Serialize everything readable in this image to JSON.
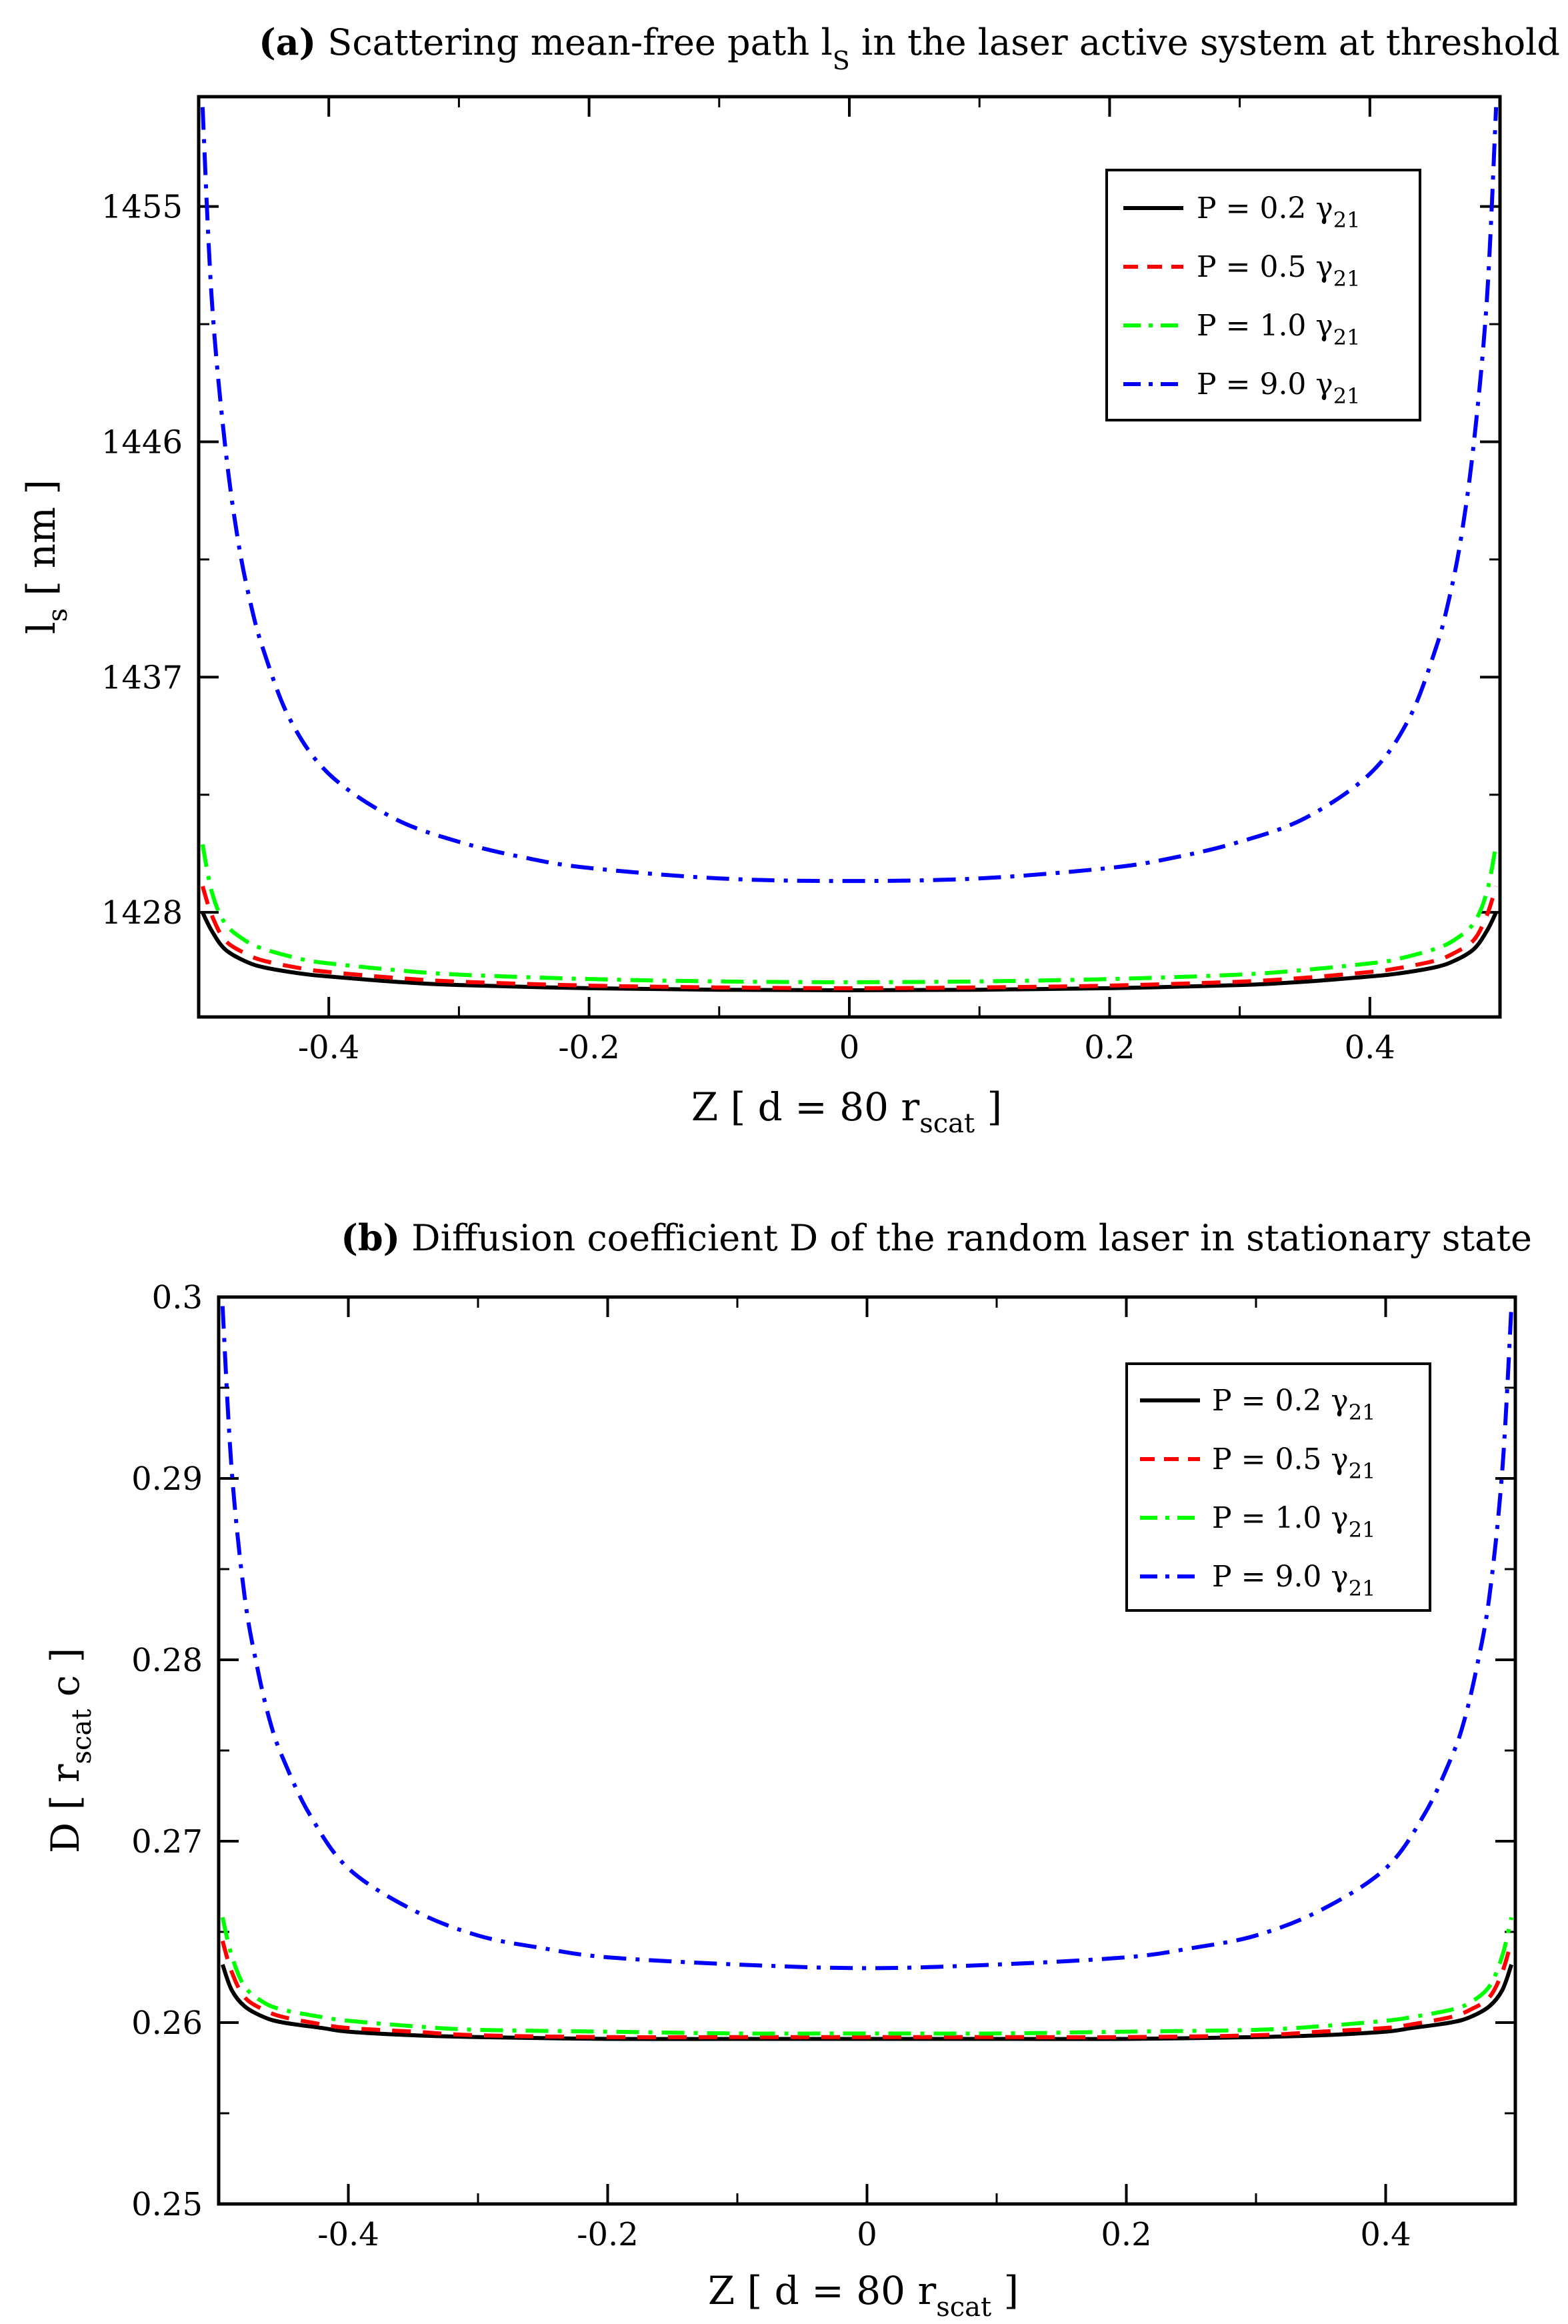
{
  "chart_data": [
    {
      "type": "line",
      "panel_tag": "(a)",
      "title": "Scattering mean-free path l",
      "title_sub": "S",
      "title_rest": " in the laser active system at threshold",
      "xlabel": "Z [ d = 80 r",
      "xlabel_sub": "scat",
      "xlabel_end": " ]",
      "ylabel": "l",
      "ylabel_sub": "s",
      "ylabel_end": " [ nm ]",
      "xlim": [
        -0.5,
        0.5
      ],
      "ylim": [
        1424.0,
        1459.2
      ],
      "x_ticks": [
        -0.4,
        -0.2,
        0,
        0.2,
        0.4
      ],
      "x_tick_labels": [
        "-0.4",
        "-0.2",
        "0",
        "0.2",
        "0.4"
      ],
      "y_ticks": [
        1428,
        1437,
        1446,
        1455
      ],
      "y_tick_labels": [
        "1428",
        "1437",
        "1446",
        "1455"
      ],
      "legend_position": "top-right",
      "series": [
        {
          "name": "P =  0.2 γ21",
          "label": "P =  0.2 γ",
          "label_sub": "21",
          "color": "#000000",
          "dash": "solid",
          "x": [
            -0.497,
            -0.49,
            -0.48,
            -0.465,
            -0.45,
            -0.42,
            -0.4,
            -0.35,
            -0.3,
            -0.2,
            -0.1,
            0,
            0.1,
            0.2,
            0.3,
            0.35,
            0.4,
            0.42,
            0.45,
            0.465,
            0.48,
            0.49,
            0.497
          ],
          "values": [
            1428.0,
            1427.3,
            1426.6,
            1426.15,
            1425.9,
            1425.65,
            1425.55,
            1425.35,
            1425.22,
            1425.1,
            1425.04,
            1425.02,
            1425.04,
            1425.1,
            1425.22,
            1425.35,
            1425.55,
            1425.65,
            1425.9,
            1426.15,
            1426.6,
            1427.3,
            1428.0
          ]
        },
        {
          "name": "P =  0.5 γ21",
          "label": "P =  0.5 γ",
          "label_sub": "21",
          "color": "#ff0000",
          "dash": "dashed",
          "x": [
            -0.497,
            -0.49,
            -0.48,
            -0.465,
            -0.45,
            -0.42,
            -0.4,
            -0.35,
            -0.3,
            -0.2,
            -0.1,
            0,
            0.1,
            0.2,
            0.3,
            0.35,
            0.4,
            0.42,
            0.45,
            0.465,
            0.48,
            0.49,
            0.497
          ],
          "values": [
            1429.0,
            1427.9,
            1426.95,
            1426.45,
            1426.15,
            1425.85,
            1425.72,
            1425.5,
            1425.35,
            1425.2,
            1425.13,
            1425.1,
            1425.13,
            1425.2,
            1425.35,
            1425.5,
            1425.72,
            1425.85,
            1426.15,
            1426.45,
            1426.95,
            1427.9,
            1429.0
          ]
        },
        {
          "name": "P =  1.0 γ21",
          "label": "P =  1.0 γ",
          "label_sub": "21",
          "color": "#00ff00",
          "dash": "dashdot",
          "x": [
            -0.497,
            -0.49,
            -0.48,
            -0.465,
            -0.45,
            -0.42,
            -0.4,
            -0.35,
            -0.3,
            -0.2,
            -0.1,
            0,
            0.1,
            0.2,
            0.3,
            0.35,
            0.4,
            0.42,
            0.45,
            0.465,
            0.48,
            0.49,
            0.497
          ],
          "values": [
            1430.6,
            1428.8,
            1427.6,
            1426.95,
            1426.6,
            1426.2,
            1426.05,
            1425.8,
            1425.62,
            1425.45,
            1425.36,
            1425.33,
            1425.36,
            1425.45,
            1425.62,
            1425.8,
            1426.05,
            1426.2,
            1426.6,
            1426.95,
            1427.6,
            1428.8,
            1430.6
          ]
        },
        {
          "name": "P =  9.0 γ21",
          "label": "P =  9.0 γ",
          "label_sub": "21",
          "color": "#0000ff",
          "dash": "dashdot",
          "x": [
            -0.497,
            -0.49,
            -0.48,
            -0.47,
            -0.46,
            -0.45,
            -0.43,
            -0.4,
            -0.35,
            -0.3,
            -0.25,
            -0.2,
            -0.1,
            0,
            0.1,
            0.2,
            0.25,
            0.3,
            0.35,
            0.4,
            0.43,
            0.45,
            0.46,
            0.47,
            0.48,
            0.49,
            0.497
          ],
          "values": [
            1458.8,
            1451.5,
            1446.0,
            1442.3,
            1439.8,
            1438.0,
            1435.4,
            1433.3,
            1431.6,
            1430.7,
            1430.1,
            1429.7,
            1429.3,
            1429.2,
            1429.3,
            1429.7,
            1430.1,
            1430.7,
            1431.6,
            1433.3,
            1435.4,
            1438.0,
            1439.8,
            1442.3,
            1446.0,
            1451.5,
            1458.8
          ]
        }
      ]
    },
    {
      "type": "line",
      "panel_tag": "(b)",
      "title": "Diffusion coefficient D of the random laser in stationary state",
      "xlabel": "Z [ d = 80 r",
      "xlabel_sub": "scat",
      "xlabel_end": " ]",
      "ylabel": "D [ r",
      "ylabel_sub": "scat",
      "ylabel_end": " c ]",
      "xlim": [
        -0.5,
        0.5
      ],
      "ylim": [
        0.25,
        0.3
      ],
      "x_ticks": [
        -0.4,
        -0.2,
        0,
        0.2,
        0.4
      ],
      "x_tick_labels": [
        "-0.4",
        "-0.2",
        "0",
        "0.2",
        "0.4"
      ],
      "y_ticks": [
        0.25,
        0.26,
        0.27,
        0.28,
        0.29,
        0.3
      ],
      "y_tick_labels": [
        "0.25",
        "0.26",
        "0.27",
        "0.28",
        "0.29",
        "0.3"
      ],
      "legend_position": "top-right",
      "series": [
        {
          "name": "P =  0.2 γ21",
          "label": "P =  0.2 γ",
          "label_sub": "21",
          "color": "#000000",
          "dash": "solid",
          "x": [
            -0.497,
            -0.49,
            -0.48,
            -0.465,
            -0.45,
            -0.42,
            -0.4,
            -0.35,
            -0.3,
            -0.2,
            -0.1,
            0,
            0.1,
            0.2,
            0.3,
            0.35,
            0.4,
            0.42,
            0.45,
            0.465,
            0.48,
            0.49,
            0.497
          ],
          "values": [
            0.2632,
            0.2618,
            0.2609,
            0.2603,
            0.26,
            0.2597,
            0.2595,
            0.2593,
            0.2592,
            0.2591,
            0.2591,
            0.2591,
            0.2591,
            0.2591,
            0.2592,
            0.2593,
            0.2595,
            0.2597,
            0.26,
            0.2603,
            0.2609,
            0.2618,
            0.2632
          ]
        },
        {
          "name": "P =  0.5 γ21",
          "label": "P =  0.5 γ",
          "label_sub": "21",
          "color": "#ff0000",
          "dash": "dashed",
          "x": [
            -0.497,
            -0.49,
            -0.48,
            -0.465,
            -0.45,
            -0.42,
            -0.4,
            -0.35,
            -0.3,
            -0.2,
            -0.1,
            0,
            0.1,
            0.2,
            0.3,
            0.35,
            0.4,
            0.42,
            0.45,
            0.465,
            0.48,
            0.49,
            0.497
          ],
          "values": [
            0.2645,
            0.2628,
            0.2614,
            0.2607,
            0.2603,
            0.2599,
            0.2597,
            0.2595,
            0.2593,
            0.2592,
            0.2592,
            0.2592,
            0.2592,
            0.2592,
            0.2593,
            0.2595,
            0.2597,
            0.2599,
            0.2603,
            0.2607,
            0.2614,
            0.2628,
            0.2645
          ]
        },
        {
          "name": "P =  1.0 γ21",
          "label": "P =  1.0 γ",
          "label_sub": "21",
          "color": "#00ff00",
          "dash": "dashdot",
          "x": [
            -0.497,
            -0.49,
            -0.48,
            -0.465,
            -0.45,
            -0.42,
            -0.4,
            -0.35,
            -0.3,
            -0.2,
            -0.1,
            0,
            0.1,
            0.2,
            0.3,
            0.35,
            0.4,
            0.42,
            0.45,
            0.465,
            0.48,
            0.49,
            0.497
          ],
          "values": [
            0.2658,
            0.2637,
            0.262,
            0.2611,
            0.2607,
            0.2603,
            0.2601,
            0.2598,
            0.2596,
            0.2595,
            0.2594,
            0.2594,
            0.2594,
            0.2595,
            0.2596,
            0.2598,
            0.2601,
            0.2603,
            0.2607,
            0.2611,
            0.262,
            0.2637,
            0.2658
          ]
        },
        {
          "name": "P =  9.0 γ21",
          "label": "P =  9.0 γ",
          "label_sub": "21",
          "color": "#0000ff",
          "dash": "dashdot",
          "x": [
            -0.497,
            -0.49,
            -0.48,
            -0.47,
            -0.46,
            -0.45,
            -0.43,
            -0.4,
            -0.35,
            -0.3,
            -0.25,
            -0.2,
            -0.1,
            0,
            0.1,
            0.2,
            0.25,
            0.3,
            0.35,
            0.4,
            0.43,
            0.45,
            0.46,
            0.47,
            0.48,
            0.49,
            0.497
          ],
          "values": [
            0.2995,
            0.2905,
            0.2835,
            0.2795,
            0.2765,
            0.2745,
            0.2715,
            0.2685,
            0.2662,
            0.2648,
            0.2641,
            0.2636,
            0.2632,
            0.263,
            0.2632,
            0.2636,
            0.2641,
            0.2648,
            0.2662,
            0.2685,
            0.2715,
            0.2745,
            0.2765,
            0.2795,
            0.2835,
            0.2905,
            0.2995
          ]
        }
      ]
    }
  ]
}
